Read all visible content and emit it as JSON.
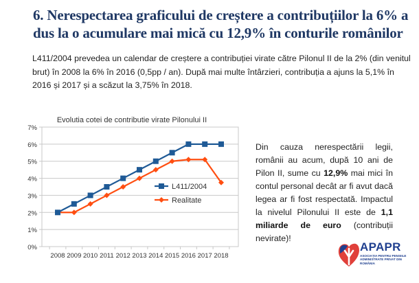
{
  "slide": {
    "title": "6. Nerespectarea graficului de creștere a contribuțiilor la 6% a dus la o acumulare mai mică cu 12,9% în conturile românilor",
    "intro": "L411/2004 prevedea un calendar de creștere a contribuției virate către Pilonul II de la 2% (din venitul brut) în 2008 la 6% în 2016 (0,5pp / an). După mai multe întârzieri, contribuția a ajuns la 5,1% în 2016 și 2017 și a scăzut la 3,75% în 2018.",
    "side_text": {
      "part1": "Din cauza nerespectării legii, românii au acum, după 10 ani de Pilon II, sume cu ",
      "bold1": "12,9%",
      "part2": " mai mici în contul personal decât ar fi avut dacă legea ar fi fost respectată. Impactul la nivelul Pilonului II este de ",
      "bold2": "1,1 miliarde de euro",
      "part3": " (contribuții nevirate)!"
    },
    "logo": {
      "name": "APAPR",
      "subtitle": "Asociația pentru Pensiile Administrate Privat din România",
      "colors": {
        "primary": "#1f3f8f",
        "accent": "#e0403a"
      }
    }
  },
  "chart_data": {
    "type": "line",
    "title": "Evolutia cotei de contributie virate Pilonului II",
    "xlabel": "",
    "ylabel": "",
    "categories": [
      "2008",
      "2009",
      "2010",
      "2011",
      "2012",
      "2013",
      "2014",
      "2015",
      "2016",
      "2017",
      "2018"
    ],
    "ylim": [
      0,
      7
    ],
    "yticks": [
      0,
      1,
      2,
      3,
      4,
      5,
      6,
      7
    ],
    "ytick_labels": [
      "0%",
      "1%",
      "2%",
      "3%",
      "4%",
      "5%",
      "6%",
      "7%"
    ],
    "grid": true,
    "legend": "center-right",
    "series": [
      {
        "name": "L411/2004",
        "color": "#1f5a96",
        "marker": "square",
        "values": [
          2,
          2.5,
          3,
          3.5,
          4,
          4.5,
          5,
          5.5,
          6,
          6,
          6
        ]
      },
      {
        "name": "Realitate",
        "color": "#ff4e11",
        "marker": "diamond",
        "values": [
          2,
          2,
          2.5,
          3,
          3.5,
          4,
          4.5,
          5,
          5.1,
          5.1,
          3.75
        ]
      }
    ]
  }
}
